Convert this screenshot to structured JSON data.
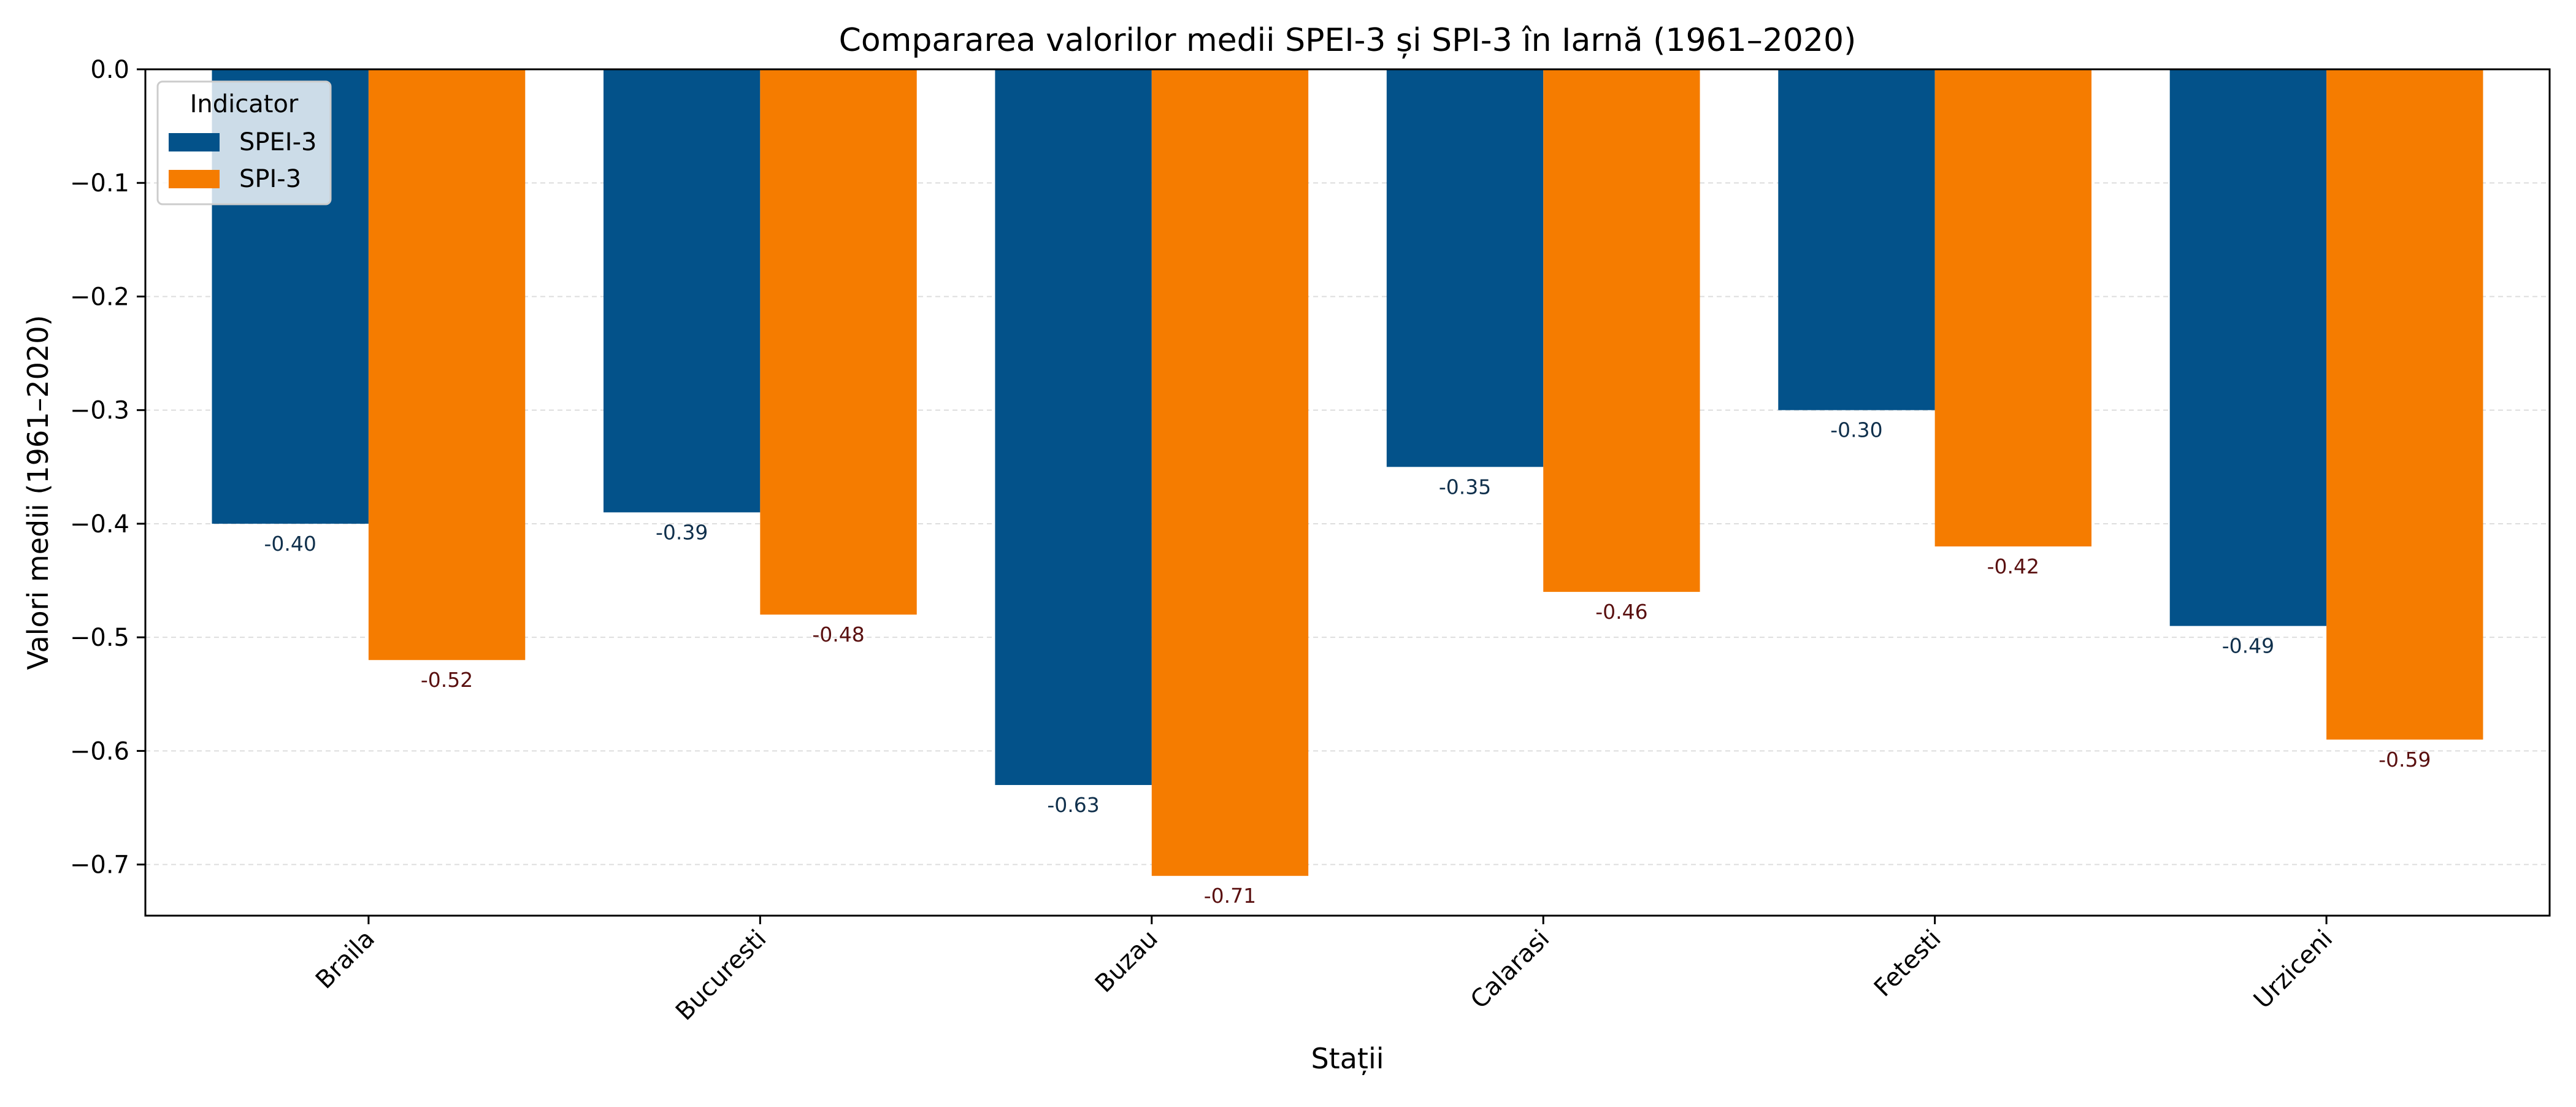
{
  "chart_data": {
    "type": "bar",
    "title": "Compararea valorilor medii SPEI-3 și SPI-3 în Iarnă (1961–2020)",
    "xlabel": "Stații",
    "ylabel": "Valori medii (1961–2020)",
    "categories": [
      "Braila",
      "Bucuresti",
      "Buzau",
      "Calarasi",
      "Fetesti",
      "Urziceni"
    ],
    "series": [
      {
        "name": "SPEI-3",
        "color": "#03528a",
        "label_color": "#10304c",
        "values": [
          -0.4,
          -0.39,
          -0.63,
          -0.35,
          -0.3,
          -0.49
        ],
        "labels": [
          "-0.40",
          "-0.39",
          "-0.63",
          "-0.35",
          "-0.30",
          "-0.49"
        ]
      },
      {
        "name": "SPI-3",
        "color": "#f57c00",
        "label_color": "#5a1010",
        "values": [
          -0.52,
          -0.48,
          -0.71,
          -0.46,
          -0.42,
          -0.59
        ],
        "labels": [
          "-0.52",
          "-0.48",
          "-0.71",
          "-0.46",
          "-0.42",
          "-0.59"
        ]
      }
    ],
    "ylim": [
      -0.745,
      0.0
    ],
    "yticks": [
      0.0,
      -0.1,
      -0.2,
      -0.3,
      -0.4,
      -0.5,
      -0.6,
      -0.7
    ],
    "ytick_labels": [
      "0.0",
      "−0.1",
      "−0.2",
      "−0.3",
      "−0.4",
      "−0.5",
      "−0.6",
      "−0.7"
    ],
    "grid": "horizontal dashed",
    "grid_color": "#dddddd",
    "legend": {
      "title": "Indicator",
      "placement": "top-left"
    },
    "xtick_rotation": 45
  }
}
